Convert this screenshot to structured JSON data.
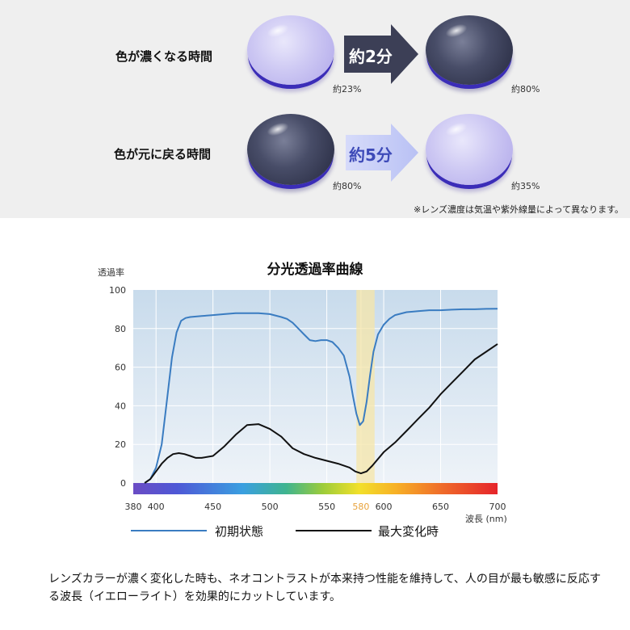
{
  "comparison": {
    "row1": {
      "label": "色が濃くなる時間",
      "arrow_text": "約2分",
      "before_pct": "約23%",
      "after_pct": "約80%"
    },
    "row2": {
      "label": "色が元に戻る時間",
      "arrow_text": "約5分",
      "before_pct": "約80%",
      "after_pct": "約35%"
    },
    "note": "※レンズ濃度は気温や紫外線量によって異なります。",
    "colors": {
      "dark_arrow": "#3c3f56",
      "light_arrow": "#c6cdf7",
      "light_arrow_text": "#3d4ab8"
    }
  },
  "chart_data": {
    "type": "line",
    "title": "分光透過率曲線",
    "ylabel": "透過率",
    "xlabel": "波長 (nm)",
    "xlim": [
      380,
      700
    ],
    "ylim": [
      0,
      100
    ],
    "x_ticks": [
      380,
      400,
      450,
      500,
      550,
      580,
      600,
      650,
      700
    ],
    "y_ticks": [
      0,
      20,
      40,
      60,
      80,
      100
    ],
    "highlight_band": {
      "x_from": 576,
      "x_to": 592,
      "label": "580"
    },
    "grid": true,
    "legend_position": "bottom",
    "series": [
      {
        "name": "初期状態",
        "color": "#3a7cc1",
        "x": [
          390,
          395,
          400,
          405,
          410,
          414,
          418,
          422,
          426,
          430,
          440,
          450,
          460,
          470,
          480,
          490,
          500,
          510,
          515,
          520,
          525,
          530,
          535,
          540,
          545,
          550,
          555,
          560,
          565,
          570,
          573,
          576,
          579,
          582,
          585,
          588,
          591,
          595,
          600,
          605,
          610,
          620,
          630,
          640,
          650,
          660,
          670,
          680,
          690,
          700
        ],
        "y": [
          0,
          2,
          8,
          20,
          45,
          65,
          78,
          84,
          85.5,
          86,
          86.5,
          87,
          87.5,
          88,
          88,
          88,
          87.5,
          86,
          85,
          83,
          80,
          77,
          74,
          73.5,
          74,
          74,
          73,
          70,
          66,
          55,
          45,
          36,
          30,
          32,
          42,
          56,
          68,
          77,
          82,
          85,
          87,
          88.5,
          89,
          89.5,
          89.5,
          89.8,
          90,
          90,
          90.2,
          90.3
        ]
      },
      {
        "name": "最大変化時",
        "color": "#111111",
        "x": [
          390,
          395,
          400,
          405,
          410,
          415,
          420,
          425,
          430,
          435,
          440,
          450,
          460,
          470,
          480,
          490,
          500,
          510,
          520,
          530,
          540,
          550,
          560,
          570,
          575,
          580,
          585,
          590,
          600,
          610,
          620,
          630,
          640,
          650,
          660,
          670,
          680,
          690,
          700
        ],
        "y": [
          0,
          2,
          6,
          10,
          13,
          15,
          15.5,
          15,
          14,
          13,
          13,
          14,
          19,
          25,
          30,
          30.5,
          28,
          24,
          18,
          15,
          13,
          11.5,
          10,
          8,
          6,
          5,
          6,
          9,
          16,
          21,
          27,
          33,
          39,
          46,
          52,
          58,
          64,
          68,
          72
        ]
      }
    ]
  },
  "description": "レンズカラーが濃く変化した時も、ネオコントラストが本来持つ性能を維持して、人の目が最も敏感に反応する波長（イエローライト）を効果的にカットしています。"
}
